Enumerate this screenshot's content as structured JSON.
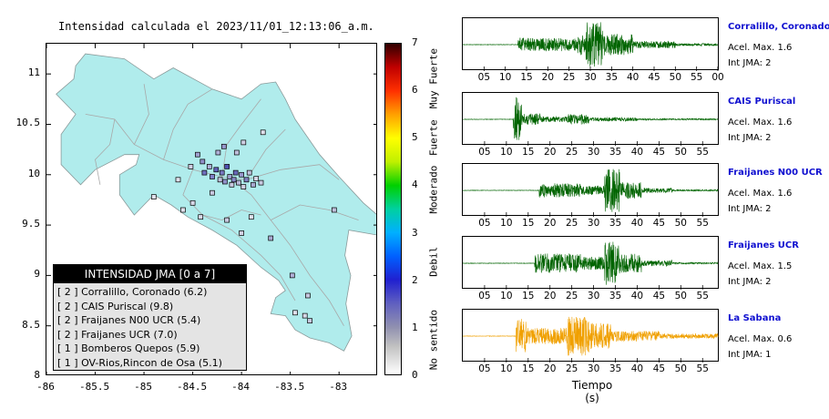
{
  "map": {
    "title": "Intensidad calculada el 2023/11/01_12:13:06_a.m.",
    "lon_range": [
      -86,
      -82.6
    ],
    "lat_range": [
      8,
      11.3
    ],
    "x_ticks": [
      "-86",
      "-85.5",
      "-85",
      "-84.5",
      "-84",
      "-83.5",
      "-83"
    ],
    "x_tick_values": [
      -86,
      -85.5,
      -85,
      -84.5,
      -84,
      -83.5,
      -83
    ],
    "y_ticks": [
      "11",
      "10.5",
      "10",
      "9.5",
      "9",
      "8.5",
      "8"
    ],
    "y_tick_values": [
      11,
      10.5,
      10,
      9.5,
      9,
      8.5,
      8
    ],
    "colors": {
      "land": "#b0ecec",
      "sea": "#ffffff",
      "roads": "#a8a8a8",
      "border": "#000000"
    },
    "station_markers": [
      {
        "lon": -84.4,
        "lat": 10.13,
        "color": "#9090c8"
      },
      {
        "lon": -84.38,
        "lat": 10.02,
        "color": "#7070c0"
      },
      {
        "lon": -84.33,
        "lat": 10.08,
        "color": "#b0b0d8"
      },
      {
        "lon": -84.3,
        "lat": 9.98,
        "color": "#8080c8"
      },
      {
        "lon": -84.26,
        "lat": 10.05,
        "color": "#6060b8"
      },
      {
        "lon": -84.22,
        "lat": 9.95,
        "color": "#c0c0dc"
      },
      {
        "lon": -84.2,
        "lat": 10.02,
        "color": "#7878c0"
      },
      {
        "lon": -84.17,
        "lat": 9.93,
        "color": "#9090c8"
      },
      {
        "lon": -84.15,
        "lat": 10.08,
        "color": "#5050b0"
      },
      {
        "lon": -84.12,
        "lat": 9.98,
        "color": "#a0a0d0"
      },
      {
        "lon": -84.1,
        "lat": 9.9,
        "color": "#c8c8e0"
      },
      {
        "lon": -84.08,
        "lat": 9.95,
        "color": "#8888c8"
      },
      {
        "lon": -84.06,
        "lat": 10.02,
        "color": "#6868b8"
      },
      {
        "lon": -84.03,
        "lat": 9.92,
        "color": "#b8b8d8"
      },
      {
        "lon": -84.0,
        "lat": 10.0,
        "color": "#9898cc"
      },
      {
        "lon": -83.98,
        "lat": 9.88,
        "color": "#d0d0e4"
      },
      {
        "lon": -83.95,
        "lat": 9.95,
        "color": "#8080c0"
      },
      {
        "lon": -83.92,
        "lat": 10.02,
        "color": "#c0c0dc"
      },
      {
        "lon": -83.88,
        "lat": 9.9,
        "color": "#a8a8d0"
      },
      {
        "lon": -83.85,
        "lat": 9.96,
        "color": "#d8d8e8"
      },
      {
        "lon": -83.8,
        "lat": 9.92,
        "color": "#c8c8e0"
      },
      {
        "lon": -84.24,
        "lat": 10.22,
        "color": "#b0b0d8"
      },
      {
        "lon": -84.18,
        "lat": 10.28,
        "color": "#9898cc"
      },
      {
        "lon": -84.05,
        "lat": 10.22,
        "color": "#c0c0dc"
      },
      {
        "lon": -83.98,
        "lat": 10.32,
        "color": "#d0d0e4"
      },
      {
        "lon": -83.78,
        "lat": 10.42,
        "color": "#e0e0ec"
      },
      {
        "lon": -84.45,
        "lat": 10.2,
        "color": "#a0a0d0"
      },
      {
        "lon": -84.52,
        "lat": 10.08,
        "color": "#d0d0e4"
      },
      {
        "lon": -84.3,
        "lat": 9.82,
        "color": "#c8c8e0"
      },
      {
        "lon": -84.6,
        "lat": 9.65,
        "color": "#e0e0ec"
      },
      {
        "lon": -84.42,
        "lat": 9.58,
        "color": "#d8d8e8"
      },
      {
        "lon": -84.15,
        "lat": 9.55,
        "color": "#c8c8e0"
      },
      {
        "lon": -84.0,
        "lat": 9.42,
        "color": "#d0d0e4"
      },
      {
        "lon": -83.9,
        "lat": 9.58,
        "color": "#e0e0ec"
      },
      {
        "lon": -83.05,
        "lat": 9.65,
        "color": "#c0c0dc"
      },
      {
        "lon": -83.7,
        "lat": 9.37,
        "color": "#a8a8d0"
      },
      {
        "lon": -83.48,
        "lat": 9.0,
        "color": "#b0b0d8"
      },
      {
        "lon": -83.32,
        "lat": 8.8,
        "color": "#c8c8e0"
      },
      {
        "lon": -83.45,
        "lat": 8.63,
        "color": "#e0e0ec"
      },
      {
        "lon": -83.35,
        "lat": 8.6,
        "color": "#d8d8e8"
      },
      {
        "lon": -83.3,
        "lat": 8.55,
        "color": "#c8c8e0"
      },
      {
        "lon": -84.9,
        "lat": 9.78,
        "color": "#e0e0ec"
      },
      {
        "lon": -84.5,
        "lat": 9.72,
        "color": "#d8d8e8"
      },
      {
        "lon": -84.65,
        "lat": 9.95,
        "color": "#e0e0ec"
      }
    ]
  },
  "legend": {
    "title": "INTENSIDAD JMA [0 a 7]",
    "entries": [
      "[ 2 ]  Corralillo, Coronado (6.2)",
      "[ 2 ]  CAIS Puriscal (9.8)",
      "[ 2 ]  Fraijanes N00 UCR (5.4)",
      "[ 2 ]  Fraijanes UCR (7.0)",
      "[ 1 ]  Bomberos Quepos (5.9)",
      "[ 1 ]  OV-Rios,Rincon de Osa (5.1)"
    ]
  },
  "colorbar": {
    "ticks": [
      "7",
      "6",
      "5",
      "4",
      "3",
      "2",
      "1",
      "0"
    ],
    "tick_values": [
      7,
      6,
      5,
      4,
      3,
      2,
      1,
      0
    ],
    "categories": [
      {
        "label": "Muy Fuerte",
        "from": 5.5,
        "to": 7
      },
      {
        "label": "Fuerte",
        "from": 4.5,
        "to": 5.5
      },
      {
        "label": "Moderado",
        "from": 3.3,
        "to": 4.5
      },
      {
        "label": "Debil",
        "from": 1.5,
        "to": 3.3
      },
      {
        "label": "No sentido",
        "from": 0,
        "to": 1.5
      }
    ],
    "gradient_stops": [
      {
        "v": 0,
        "c": "#ffffff"
      },
      {
        "v": 0.6,
        "c": "#c0c0c0"
      },
      {
        "v": 1.0,
        "c": "#9090b0"
      },
      {
        "v": 1.5,
        "c": "#6060c0"
      },
      {
        "v": 2.0,
        "c": "#2020d0"
      },
      {
        "v": 2.5,
        "c": "#0060ff"
      },
      {
        "v": 3.0,
        "c": "#00b0ff"
      },
      {
        "v": 3.5,
        "c": "#00d0a0"
      },
      {
        "v": 4.0,
        "c": "#00d000"
      },
      {
        "v": 4.5,
        "c": "#c0f000"
      },
      {
        "v": 5.0,
        "c": "#ffff00"
      },
      {
        "v": 5.5,
        "c": "#ffa000"
      },
      {
        "v": 6.0,
        "c": "#ff3000"
      },
      {
        "v": 6.5,
        "c": "#c00000"
      },
      {
        "v": 7.0,
        "c": "#300000"
      }
    ]
  },
  "traces": {
    "time_axis_label": "Tiempo (s)",
    "stations": [
      {
        "name": "Corralillo, Coronado",
        "accel": "Acel. Max. 1.6",
        "int": "Int JMA: 2",
        "color": "#006400",
        "seed": 11,
        "ticks": [
          "05",
          "10",
          "15",
          "20",
          "25",
          "30",
          "35",
          "40",
          "45",
          "50",
          "55",
          "00"
        ],
        "tick_values": [
          5,
          10,
          15,
          20,
          25,
          30,
          35,
          40,
          45,
          50,
          55,
          60
        ],
        "xmax": 60,
        "segments": [
          {
            "t0": 13,
            "t1": 27,
            "amp": 0.28
          },
          {
            "t0": 27,
            "t1": 29,
            "amp": 0.45
          },
          {
            "t0": 29,
            "t1": 33,
            "amp": 0.95
          },
          {
            "t0": 33,
            "t1": 40,
            "amp": 0.45
          },
          {
            "t0": 40,
            "t1": 50,
            "amp": 0.15
          },
          {
            "t0": 50,
            "t1": 60,
            "amp": 0.05
          }
        ]
      },
      {
        "name": "CAIS Puriscal",
        "accel": "Acel. Max. 1.6",
        "int": "Int JMA: 2",
        "color": "#006400",
        "seed": 23,
        "ticks": [
          "05",
          "10",
          "15",
          "20",
          "25",
          "30",
          "35",
          "40",
          "45",
          "50",
          "55"
        ],
        "tick_values": [
          5,
          10,
          15,
          20,
          25,
          30,
          35,
          40,
          45,
          50,
          55
        ],
        "xmax": 58.5,
        "segments": [
          {
            "t0": 11.6,
            "t1": 13.5,
            "amp": 0.95
          },
          {
            "t0": 13.5,
            "t1": 18,
            "amp": 0.25
          },
          {
            "t0": 18,
            "t1": 24,
            "amp": 0.12
          },
          {
            "t0": 24,
            "t1": 29,
            "amp": 0.22
          },
          {
            "t0": 29,
            "t1": 40,
            "amp": 0.08
          },
          {
            "t0": 40,
            "t1": 58.5,
            "amp": 0.03
          }
        ]
      },
      {
        "name": "Fraijanes N00 UCR",
        "accel": "Acel. Max. 1.6",
        "int": "Int JMA: 2",
        "color": "#006400",
        "seed": 37,
        "ticks": [
          "05",
          "10",
          "15",
          "20",
          "25",
          "30",
          "35",
          "40",
          "45",
          "50",
          "55"
        ],
        "tick_values": [
          5,
          10,
          15,
          20,
          25,
          30,
          35,
          40,
          45,
          50,
          55
        ],
        "xmax": 58.5,
        "segments": [
          {
            "t0": 17.5,
            "t1": 27,
            "amp": 0.3
          },
          {
            "t0": 27,
            "t1": 32.5,
            "amp": 0.2
          },
          {
            "t0": 32.5,
            "t1": 36,
            "amp": 0.95
          },
          {
            "t0": 36,
            "t1": 41,
            "amp": 0.35
          },
          {
            "t0": 41,
            "t1": 48,
            "amp": 0.1
          },
          {
            "t0": 48,
            "t1": 58.5,
            "amp": 0.03
          }
        ]
      },
      {
        "name": "Fraijanes UCR",
        "accel": "Acel. Max. 1.5",
        "int": "Int JMA: 2",
        "color": "#006400",
        "seed": 51,
        "ticks": [
          "05",
          "10",
          "15",
          "20",
          "25",
          "30",
          "35",
          "40",
          "45",
          "50",
          "55"
        ],
        "tick_values": [
          5,
          10,
          15,
          20,
          25,
          30,
          35,
          40,
          45,
          50,
          55
        ],
        "xmax": 58.5,
        "segments": [
          {
            "t0": 16.5,
            "t1": 27,
            "amp": 0.42
          },
          {
            "t0": 27,
            "t1": 32.5,
            "amp": 0.28
          },
          {
            "t0": 32.5,
            "t1": 36,
            "amp": 0.95
          },
          {
            "t0": 36,
            "t1": 41,
            "amp": 0.4
          },
          {
            "t0": 41,
            "t1": 48,
            "amp": 0.12
          },
          {
            "t0": 48,
            "t1": 58.5,
            "amp": 0.03
          }
        ]
      },
      {
        "name": "La Sabana",
        "accel": "Acel. Max. 0.6",
        "int": "Int JMA: 1",
        "color": "#f0a000",
        "seed": 67,
        "ticks": [
          "05",
          "10",
          "15",
          "20",
          "25",
          "30",
          "35",
          "40",
          "45",
          "50",
          "55"
        ],
        "tick_values": [
          5,
          10,
          15,
          20,
          25,
          30,
          35,
          40,
          45,
          50,
          55
        ],
        "xmax": 58.5,
        "segments": [
          {
            "t0": 12.2,
            "t1": 14.5,
            "amp": 0.75
          },
          {
            "t0": 14.5,
            "t1": 24,
            "amp": 0.35
          },
          {
            "t0": 24,
            "t1": 29,
            "amp": 0.85
          },
          {
            "t0": 29,
            "t1": 34,
            "amp": 0.55
          },
          {
            "t0": 34,
            "t1": 45,
            "amp": 0.22
          },
          {
            "t0": 45,
            "t1": 58.5,
            "amp": 0.1
          }
        ]
      }
    ]
  }
}
